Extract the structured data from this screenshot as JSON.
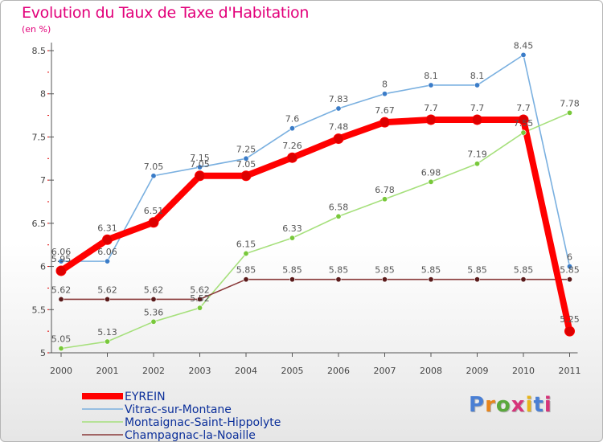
{
  "header": {
    "title": "Evolution du Taux de Taxe d'Habitation",
    "subtitle": "(en %)"
  },
  "logo": {
    "text": "Proxiti",
    "letter_colors": [
      "#4a7fd4",
      "#e8851b",
      "#5aa83c",
      "#d6347a",
      "#e8b51b",
      "#4a7fd4",
      "#d6347a"
    ]
  },
  "chart_data": {
    "type": "line",
    "title": "Evolution du Taux de Taxe d'Habitation",
    "subtitle": "(en %)",
    "xlabel": "",
    "ylabel": "",
    "ylim": [
      5,
      8.5
    ],
    "yticks": [
      5,
      5.5,
      6,
      6.5,
      7,
      7.5,
      8,
      8.5
    ],
    "ytick_labels": [
      "5",
      "5.5",
      "6",
      "6.5",
      "7",
      "7.5",
      "8",
      "8.5"
    ],
    "grid": false,
    "legend_position": "bottom-left",
    "x": [
      "2000",
      "2001",
      "2002",
      "2003",
      "2004",
      "2005",
      "2006",
      "2007",
      "2008",
      "2009",
      "2010",
      "2011"
    ],
    "series": [
      {
        "name": "EYREIN",
        "color": "#ff0000",
        "marker_color": "#dd0000",
        "values": [
          5.95,
          6.31,
          6.51,
          7.05,
          7.05,
          7.26,
          7.48,
          7.67,
          7.7,
          7.7,
          7.7,
          5.25
        ],
        "labels": [
          "5.95",
          "6.31",
          "6.51",
          "7.05",
          "7.05",
          "7.26",
          "7.48",
          "7.67",
          "7.7",
          "7.7",
          "7.7",
          "5.25"
        ]
      },
      {
        "name": "Vitrac-sur-Montane",
        "color": "#7ab0e0",
        "marker_color": "#3a7cc8",
        "values": [
          6.06,
          6.06,
          7.05,
          7.15,
          7.25,
          7.6,
          7.83,
          8.0,
          8.1,
          8.1,
          8.45,
          6.0
        ],
        "labels": [
          "6.06",
          "6.06",
          "7.05",
          "7.15",
          "7.25",
          "7.6",
          "7.83",
          "8",
          "8.1",
          "8.1",
          "8.45",
          "6"
        ]
      },
      {
        "name": "Montaignac-Saint-Hippolyte",
        "color": "#a6e07c",
        "marker_color": "#78c83a",
        "values": [
          5.05,
          5.13,
          5.36,
          5.52,
          6.15,
          6.33,
          6.58,
          6.78,
          6.98,
          7.19,
          7.55,
          7.78
        ],
        "labels": [
          "5.05",
          "5.13",
          "5.36",
          "5.52",
          "6.15",
          "6.33",
          "6.58",
          "6.78",
          "6.98",
          "7.19",
          "7.55",
          "7.78"
        ]
      },
      {
        "name": "Champagnac-la-Noaille",
        "color": "#8a3a3a",
        "marker_color": "#5a1a1a",
        "values": [
          5.62,
          5.62,
          5.62,
          5.62,
          5.85,
          5.85,
          5.85,
          5.85,
          5.85,
          5.85,
          5.85,
          5.85
        ],
        "labels": [
          "5.62",
          "5.62",
          "5.62",
          "5.62",
          "5.85",
          "5.85",
          "5.85",
          "5.85",
          "5.85",
          "5.85",
          "5.85",
          "5.85"
        ]
      }
    ]
  }
}
